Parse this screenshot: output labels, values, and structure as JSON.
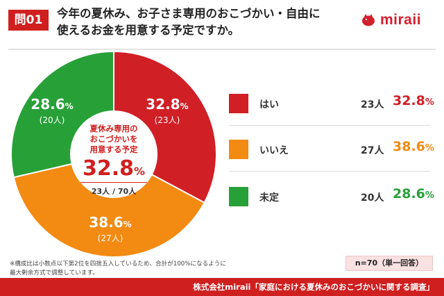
{
  "header": {
    "question_badge": "問01",
    "title_line1": "今年の夏休み、お子さま専用のおこづかい・自由に",
    "title_line2": "使えるお金を用意する予定ですか。",
    "logo_text": "miraii"
  },
  "colors": {
    "yes": "#d11f26",
    "no": "#f38a12",
    "undecided": "#27a038",
    "accent": "#cf1f1f"
  },
  "center": {
    "question_line1": "夏休み専用の",
    "question_line2": "おこづかいを",
    "question_line3": "用意する予定",
    "pct_number": "32.8",
    "pct_unit": "%",
    "count_text": "23人 / 70人"
  },
  "slice_labels": [
    {
      "pct": "32.8",
      "unit": "%",
      "count": "(23人)"
    },
    {
      "pct": "38.6",
      "unit": "%",
      "count": "(27人)"
    },
    {
      "pct": "28.6",
      "unit": "%",
      "count": "(20人)"
    }
  ],
  "legend": [
    {
      "label": "はい",
      "count": "23人",
      "pct": "32.8",
      "unit": "%"
    },
    {
      "label": "いいえ",
      "count": "27人",
      "pct": "38.6",
      "unit": "%"
    },
    {
      "label": "未定",
      "count": "20人",
      "pct": "28.6",
      "unit": "%"
    }
  ],
  "note_line1": "※構成比は小数点以下第2位を四捨五入しているため、合計が100%になるように",
  "note_line2": "最大剰余方式で調整しています。",
  "sample_badge": "n=70（単一回答）",
  "footer": "株式会社miraii「家庭における夏休みのおこづかいに関する調査」",
  "chart_data": {
    "type": "pie",
    "title": "今年の夏休み、お子さま専用のおこづかい・自由に使えるお金を用意する予定ですか。",
    "categories": [
      "はい",
      "いいえ",
      "未定"
    ],
    "values": [
      32.8,
      38.6,
      28.6
    ],
    "counts": [
      23,
      27,
      20
    ],
    "total": 70,
    "unit": "%",
    "donut": true,
    "legend_placement": "right"
  }
}
